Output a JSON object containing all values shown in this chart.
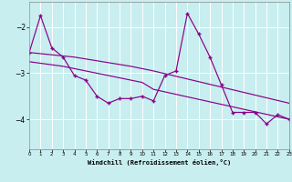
{
  "xlabel": "Windchill (Refroidissement éolien,°C)",
  "background_color": "#c8eef0",
  "line_color": "#880088",
  "grid_color": "#ffffff",
  "xlim": [
    0,
    23
  ],
  "ylim": [
    -4.65,
    -1.45
  ],
  "yticks": [
    -4,
    -3,
    -2
  ],
  "xticks": [
    0,
    1,
    2,
    3,
    4,
    5,
    6,
    7,
    8,
    9,
    10,
    11,
    12,
    13,
    14,
    15,
    16,
    17,
    18,
    19,
    20,
    21,
    22,
    23
  ],
  "zigzag_x": [
    0,
    1,
    2,
    3,
    4,
    5,
    6,
    7,
    8,
    9,
    10,
    11,
    12,
    13,
    14,
    15,
    16,
    17,
    18,
    19,
    20,
    21,
    22,
    23
  ],
  "zigzag_y": [
    -2.55,
    -1.75,
    -2.45,
    -2.65,
    -3.05,
    -3.15,
    -3.5,
    -3.65,
    -3.55,
    -3.55,
    -3.5,
    -3.6,
    -3.05,
    -2.95,
    -1.7,
    -2.15,
    -2.65,
    -3.25,
    -3.85,
    -3.85,
    -3.85,
    -4.1,
    -3.9,
    -4.0
  ],
  "trend1_x": [
    0,
    4,
    9,
    10,
    11,
    23
  ],
  "trend1_y": [
    -2.55,
    -2.65,
    -2.85,
    -2.9,
    -2.95,
    -3.65
  ],
  "trend2_x": [
    0,
    3,
    10,
    11,
    23
  ],
  "trend2_y": [
    -2.75,
    -2.85,
    -3.2,
    -3.35,
    -4.0
  ]
}
